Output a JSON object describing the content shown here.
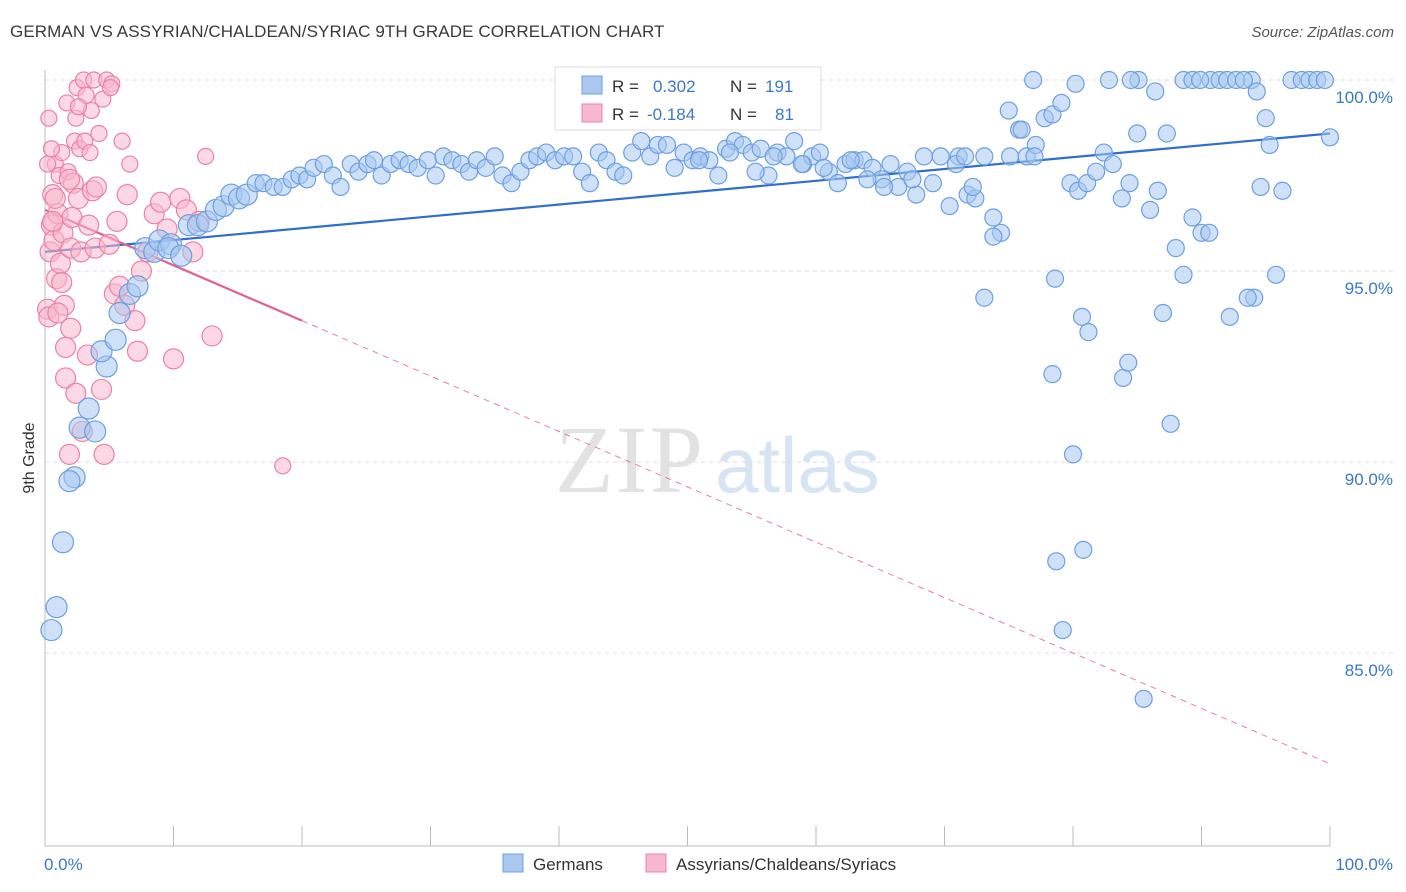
{
  "title": "GERMAN VS ASSYRIAN/CHALDEAN/SYRIAC 9TH GRADE CORRELATION CHART",
  "source": "Source: ZipAtlas.com",
  "watermark": {
    "zip": "ZIP",
    "atlas": "atlas"
  },
  "colors": {
    "blue_fill": "#a8c8f0",
    "blue_stroke": "#6e9fe0",
    "blue_line": "#2f6fcc",
    "pink_fill": "#f7b8cc",
    "pink_stroke": "#ea82a5",
    "pink_line": "#e0608e",
    "axis_text": "#3a78c8",
    "grid": "#dddddd"
  },
  "legend_stats": [
    {
      "r_label": "R =",
      "r_value": "0.302",
      "n_label": "N =",
      "n_value": "191",
      "color": "blue"
    },
    {
      "r_label": "R =",
      "r_value": "-0.184",
      "n_label": "N =",
      "n_value": "81",
      "color": "pink"
    }
  ],
  "chart_data": {
    "type": "scatter",
    "title": "GERMAN VS ASSYRIAN/CHALDEAN/SYRIAC 9TH GRADE CORRELATION CHART",
    "xlabel": "",
    "ylabel": "9th Grade",
    "xlim": [
      0,
      100
    ],
    "ylim": [
      80.5,
      101
    ],
    "x_tick_labels": [
      "0.0%",
      "100.0%"
    ],
    "y_ticks": [
      85,
      90,
      95,
      100
    ],
    "y_tick_labels": [
      "85.0%",
      "90.0%",
      "95.0%",
      "100.0%"
    ],
    "grid": "horizontal dashed",
    "legend_position": "bottom-center",
    "series": [
      {
        "name": "Germans",
        "color": "blue",
        "trend": {
          "x": [
            0,
            100
          ],
          "y": [
            95.5,
            98.6
          ],
          "dashed_x": null
        },
        "points": [
          [
            0.5,
            85.6
          ],
          [
            0.9,
            86.2
          ],
          [
            1.4,
            87.9
          ],
          [
            2.3,
            89.6
          ],
          [
            1.9,
            89.5
          ],
          [
            2.7,
            90.9
          ],
          [
            3.9,
            90.8
          ],
          [
            3.4,
            91.4
          ],
          [
            4.8,
            92.5
          ],
          [
            4.4,
            92.9
          ],
          [
            5.5,
            93.2
          ],
          [
            5.8,
            93.9
          ],
          [
            6.6,
            94.4
          ],
          [
            7.2,
            94.6
          ],
          [
            7.8,
            95.6
          ],
          [
            8.5,
            95.5
          ],
          [
            8.9,
            95.8
          ],
          [
            9.8,
            95.7
          ],
          [
            9.6,
            95.6
          ],
          [
            10.6,
            95.4
          ],
          [
            11.2,
            96.2
          ],
          [
            11.9,
            96.2
          ],
          [
            12.6,
            96.3
          ],
          [
            13.3,
            96.6
          ],
          [
            13.9,
            96.7
          ],
          [
            14.5,
            97.0
          ],
          [
            15.1,
            96.9
          ],
          [
            15.7,
            97.0
          ],
          [
            16.4,
            97.3
          ],
          [
            17.0,
            97.3
          ],
          [
            17.8,
            97.2
          ],
          [
            18.5,
            97.2
          ],
          [
            19.2,
            97.4
          ],
          [
            19.8,
            97.5
          ],
          [
            20.4,
            97.4
          ],
          [
            20.9,
            97.7
          ],
          [
            21.7,
            97.8
          ],
          [
            22.4,
            97.5
          ],
          [
            23.0,
            97.2
          ],
          [
            23.8,
            97.8
          ],
          [
            24.4,
            97.6
          ],
          [
            25.1,
            97.8
          ],
          [
            25.6,
            97.9
          ],
          [
            26.2,
            97.5
          ],
          [
            26.9,
            97.8
          ],
          [
            27.6,
            97.9
          ],
          [
            28.3,
            97.8
          ],
          [
            29.0,
            97.7
          ],
          [
            29.8,
            97.9
          ],
          [
            30.4,
            97.5
          ],
          [
            31.0,
            98.0
          ],
          [
            31.7,
            97.9
          ],
          [
            32.4,
            97.8
          ],
          [
            33.0,
            97.6
          ],
          [
            33.6,
            97.9
          ],
          [
            34.3,
            97.7
          ],
          [
            35.0,
            98.0
          ],
          [
            35.6,
            97.5
          ],
          [
            36.3,
            97.3
          ],
          [
            37.0,
            97.6
          ],
          [
            37.7,
            97.9
          ],
          [
            38.3,
            98.0
          ],
          [
            39.0,
            98.1
          ],
          [
            39.7,
            97.9
          ],
          [
            40.4,
            98.0
          ],
          [
            41.1,
            98.0
          ],
          [
            41.8,
            97.6
          ],
          [
            42.4,
            97.3
          ],
          [
            43.1,
            98.1
          ],
          [
            43.7,
            97.9
          ],
          [
            44.4,
            97.6
          ],
          [
            45.0,
            97.5
          ],
          [
            45.7,
            98.1
          ],
          [
            46.4,
            98.4
          ],
          [
            47.1,
            98.0
          ],
          [
            47.7,
            98.3
          ],
          [
            48.4,
            98.3
          ],
          [
            49.0,
            97.7
          ],
          [
            49.7,
            98.1
          ],
          [
            50.4,
            97.9
          ],
          [
            51.0,
            98.0
          ],
          [
            51.7,
            97.9
          ],
          [
            52.4,
            97.5
          ],
          [
            53.0,
            98.2
          ],
          [
            53.7,
            98.4
          ],
          [
            54.3,
            98.3
          ],
          [
            55.0,
            98.1
          ],
          [
            55.7,
            98.2
          ],
          [
            56.3,
            97.5
          ],
          [
            57.0,
            98.1
          ],
          [
            57.7,
            98.0
          ],
          [
            58.3,
            98.4
          ],
          [
            59.0,
            97.8
          ],
          [
            59.7,
            98.0
          ],
          [
            60.3,
            98.1
          ],
          [
            61.0,
            97.6
          ],
          [
            61.7,
            97.3
          ],
          [
            62.3,
            97.8
          ],
          [
            63.0,
            97.9
          ],
          [
            63.7,
            97.9
          ],
          [
            64.4,
            97.7
          ],
          [
            65.1,
            97.4
          ],
          [
            65.8,
            97.8
          ],
          [
            66.4,
            97.2
          ],
          [
            67.1,
            97.6
          ],
          [
            67.8,
            97.0
          ],
          [
            68.4,
            98.0
          ],
          [
            69.1,
            97.3
          ],
          [
            69.7,
            98.0
          ],
          [
            70.4,
            96.7
          ],
          [
            71.1,
            98.0
          ],
          [
            71.8,
            97.0
          ],
          [
            72.4,
            96.9
          ],
          [
            73.1,
            98.0
          ],
          [
            73.8,
            96.4
          ],
          [
            74.4,
            96.0
          ],
          [
            75.1,
            98.0
          ],
          [
            75.8,
            98.7
          ],
          [
            76.4,
            98.0
          ],
          [
            77.1,
            98.3
          ],
          [
            77.8,
            99.0
          ],
          [
            78.4,
            99.1
          ],
          [
            79.1,
            99.4
          ],
          [
            79.8,
            97.3
          ],
          [
            80.4,
            97.1
          ],
          [
            81.1,
            97.3
          ],
          [
            81.8,
            97.6
          ],
          [
            82.4,
            98.1
          ],
          [
            83.1,
            97.8
          ],
          [
            83.8,
            96.9
          ],
          [
            84.4,
            97.3
          ],
          [
            85.0,
            98.6
          ],
          [
            86.0,
            96.6
          ],
          [
            86.6,
            97.1
          ],
          [
            87.3,
            98.6
          ],
          [
            88.0,
            95.6
          ],
          [
            88.6,
            94.9
          ],
          [
            89.3,
            96.4
          ],
          [
            90.0,
            96.0
          ],
          [
            90.6,
            96.0
          ],
          [
            73.1,
            94.3
          ],
          [
            78.6,
            94.8
          ],
          [
            80.7,
            93.8
          ],
          [
            81.2,
            93.4
          ],
          [
            87.0,
            93.9
          ],
          [
            93.9,
            100.0
          ],
          [
            94.3,
            99.7
          ],
          [
            94.6,
            97.2
          ],
          [
            95.0,
            99.0
          ],
          [
            95.3,
            98.3
          ],
          [
            97.0,
            100.0
          ],
          [
            97.8,
            100.0
          ],
          [
            98.4,
            100.0
          ],
          [
            99.0,
            100.0
          ],
          [
            99.6,
            100.0
          ],
          [
            100.0,
            98.5
          ],
          [
            96.3,
            97.1
          ],
          [
            95.8,
            94.9
          ],
          [
            94.1,
            94.3
          ],
          [
            93.6,
            94.3
          ],
          [
            90.7,
            100.0
          ],
          [
            91.4,
            100.0
          ],
          [
            92.0,
            100.0
          ],
          [
            92.7,
            100.0
          ],
          [
            93.3,
            100.0
          ],
          [
            88.6,
            100.0
          ],
          [
            89.3,
            100.0
          ],
          [
            89.9,
            100.0
          ],
          [
            85.1,
            100.0
          ],
          [
            86.4,
            99.7
          ],
          [
            84.5,
            100.0
          ],
          [
            82.8,
            100.0
          ],
          [
            80.2,
            99.9
          ],
          [
            76.9,
            100.0
          ],
          [
            75.0,
            99.2
          ],
          [
            76.0,
            98.7
          ],
          [
            77.0,
            98.0
          ],
          [
            70.9,
            97.8
          ],
          [
            71.6,
            98.0
          ],
          [
            72.2,
            97.2
          ],
          [
            67.5,
            97.4
          ],
          [
            65.3,
            97.2
          ],
          [
            64.0,
            97.4
          ],
          [
            62.7,
            97.9
          ],
          [
            60.6,
            97.7
          ],
          [
            58.9,
            97.8
          ],
          [
            56.7,
            98.0
          ],
          [
            55.3,
            97.6
          ],
          [
            53.3,
            98.1
          ],
          [
            50.9,
            97.9
          ],
          [
            78.4,
            92.3
          ],
          [
            83.9,
            92.2
          ],
          [
            92.2,
            93.8
          ],
          [
            87.6,
            91.0
          ],
          [
            80.0,
            90.2
          ],
          [
            84.3,
            92.6
          ],
          [
            78.7,
            87.4
          ],
          [
            80.8,
            87.7
          ],
          [
            79.2,
            85.6
          ],
          [
            85.5,
            83.8
          ],
          [
            73.8,
            95.9
          ]
        ]
      },
      {
        "name": "Assyrians/Chaldeans/Syriacs",
        "color": "pink",
        "trend": {
          "x": [
            0,
            20
          ],
          "y": [
            96.6,
            93.7
          ],
          "dashed_x": [
            20,
            100
          ]
        },
        "points": [
          [
            0.2,
            94.0
          ],
          [
            0.3,
            93.8
          ],
          [
            0.4,
            95.5
          ],
          [
            0.5,
            96.2
          ],
          [
            0.6,
            97.0
          ],
          [
            0.7,
            95.8
          ],
          [
            0.8,
            97.8
          ],
          [
            0.9,
            94.8
          ],
          [
            1.0,
            96.5
          ],
          [
            1.1,
            97.5
          ],
          [
            1.2,
            95.2
          ],
          [
            1.3,
            98.1
          ],
          [
            1.4,
            96.0
          ],
          [
            1.5,
            94.1
          ],
          [
            1.6,
            93.0
          ],
          [
            1.7,
            99.4
          ],
          [
            1.8,
            97.6
          ],
          [
            1.9,
            90.2
          ],
          [
            2.0,
            95.6
          ],
          [
            2.1,
            96.4
          ],
          [
            2.2,
            97.3
          ],
          [
            2.3,
            98.4
          ],
          [
            2.4,
            99.0
          ],
          [
            2.5,
            99.8
          ],
          [
            2.6,
            96.9
          ],
          [
            2.7,
            98.2
          ],
          [
            2.8,
            95.5
          ],
          [
            2.9,
            90.8
          ],
          [
            3.0,
            100.0
          ],
          [
            3.1,
            98.4
          ],
          [
            3.2,
            99.6
          ],
          [
            3.3,
            92.8
          ],
          [
            3.4,
            96.2
          ],
          [
            3.5,
            98.1
          ],
          [
            3.6,
            99.2
          ],
          [
            3.7,
            97.1
          ],
          [
            3.8,
            100.0
          ],
          [
            3.9,
            95.6
          ],
          [
            4.0,
            97.2
          ],
          [
            4.2,
            98.6
          ],
          [
            4.4,
            91.9
          ],
          [
            4.6,
            90.2
          ],
          [
            4.8,
            100.0
          ],
          [
            5.0,
            95.7
          ],
          [
            5.2,
            99.9
          ],
          [
            5.4,
            94.4
          ],
          [
            5.6,
            96.3
          ],
          [
            5.8,
            94.6
          ],
          [
            6.0,
            98.4
          ],
          [
            6.2,
            94.1
          ],
          [
            6.4,
            97.0
          ],
          [
            6.6,
            97.8
          ],
          [
            7.0,
            93.7
          ],
          [
            7.2,
            92.9
          ],
          [
            7.5,
            95.0
          ],
          [
            8.0,
            95.5
          ],
          [
            8.5,
            96.5
          ],
          [
            9.0,
            96.8
          ],
          [
            9.5,
            96.1
          ],
          [
            10.0,
            92.7
          ],
          [
            10.5,
            96.9
          ],
          [
            11.0,
            96.6
          ],
          [
            11.5,
            95.5
          ],
          [
            12.0,
            96.3
          ],
          [
            12.5,
            98.0
          ],
          [
            13.0,
            93.3
          ],
          [
            0.3,
            99.0
          ],
          [
            0.5,
            98.2
          ],
          [
            0.8,
            96.9
          ],
          [
            1.0,
            93.9
          ],
          [
            1.3,
            94.7
          ],
          [
            1.6,
            92.2
          ],
          [
            2.0,
            93.5
          ],
          [
            2.4,
            91.8
          ],
          [
            18.5,
            89.9
          ],
          [
            4.5,
            99.5
          ],
          [
            5.1,
            99.8
          ],
          [
            0.2,
            97.8
          ],
          [
            0.6,
            96.3
          ],
          [
            1.9,
            97.4
          ],
          [
            2.6,
            99.3
          ]
        ]
      }
    ]
  }
}
